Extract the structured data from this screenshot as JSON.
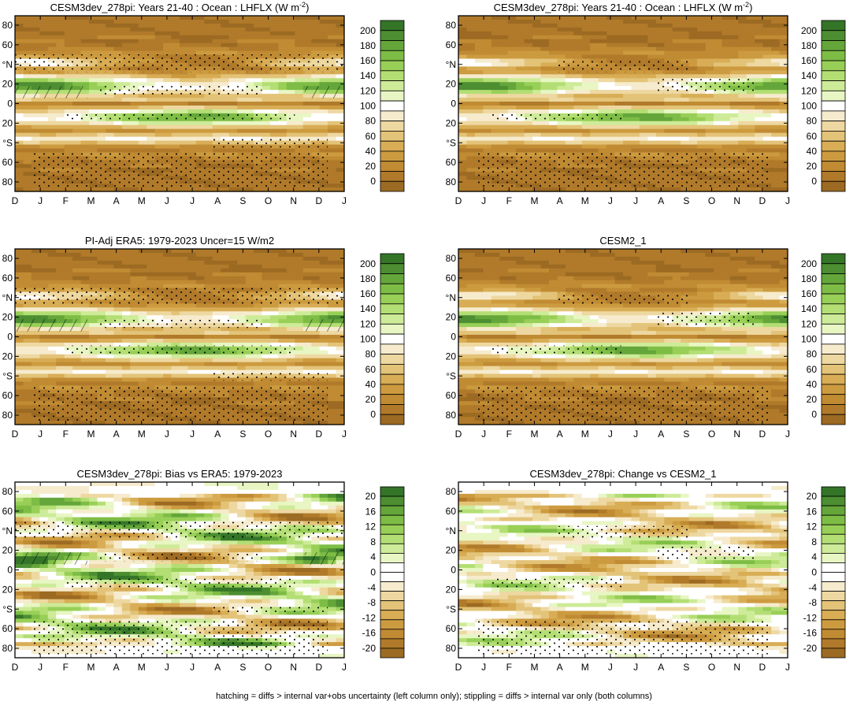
{
  "footer": "hatching = diffs > internal var+obs uncertainty (left column only); stippling = diffs > internal var only (both columns)",
  "colors": {
    "absolute": [
      "#9c6a22",
      "#b07a2a",
      "#c08b33",
      "#cd9b3f",
      "#d8ad55",
      "#e3c378",
      "#eed8a1",
      "#f6ebcd",
      "#ffffff",
      "#e8f6c4",
      "#cdeb98",
      "#b3de74",
      "#98cf57",
      "#7ebd45",
      "#64a63a",
      "#4c8e31",
      "#347528"
    ],
    "difference": [
      "#9c6a22",
      "#b07a2a",
      "#c08b33",
      "#cd9b3f",
      "#d8ad55",
      "#e3c378",
      "#eed8a1",
      "#f6ebcd",
      "#ffffff",
      "#ffffff",
      "#e8f6c4",
      "#cdeb98",
      "#b3de74",
      "#98cf57",
      "#7ebd45",
      "#64a63a",
      "#4c8e31",
      "#347528"
    ]
  },
  "chart_data": [
    {
      "type": "heatmap",
      "title": "CESM3dev_278pi: Years 21-40 : Ocean : LHFLX (W m",
      "title_sup": "-2",
      "title_end": ")",
      "x_ticks": [
        "D",
        "J",
        "F",
        "M",
        "A",
        "M",
        "J",
        "J",
        "A",
        "S",
        "O",
        "N",
        "D",
        "J"
      ],
      "y_ticks": [
        "80",
        "60",
        "°N",
        "20",
        "0",
        "20",
        "°S",
        "60",
        "80"
      ],
      "y_range": [
        -90,
        90
      ],
      "colorbar_ticks": [
        "200",
        "180",
        "160",
        "140",
        "120",
        "100",
        "80",
        "60",
        "40",
        "20",
        "0"
      ],
      "colorbar_range": [
        -10,
        210
      ],
      "scale": "absolute",
      "hatching": true,
      "stippling": true
    },
    {
      "type": "heatmap",
      "title": "CESM3dev_278pi: Years 21-40 : Ocean : LHFLX (W m",
      "title_sup": "-2",
      "title_end": ")",
      "x_ticks": [
        "D",
        "J",
        "F",
        "M",
        "A",
        "M",
        "J",
        "J",
        "A",
        "S",
        "O",
        "N",
        "D",
        "J"
      ],
      "y_ticks": [
        "80",
        "60",
        "°N",
        "20",
        "0",
        "20",
        "°S",
        "60",
        "80"
      ],
      "y_range": [
        -90,
        90
      ],
      "colorbar_ticks": [
        "200",
        "180",
        "160",
        "140",
        "120",
        "100",
        "80",
        "60",
        "40",
        "20",
        "0"
      ],
      "colorbar_range": [
        -10,
        210
      ],
      "scale": "absolute",
      "hatching": false,
      "stippling": true
    },
    {
      "type": "heatmap",
      "title": "PI-Adj ERA5: 1979-2023 Uncer=15 W/m2",
      "x_ticks": [
        "D",
        "J",
        "F",
        "M",
        "A",
        "M",
        "J",
        "J",
        "A",
        "S",
        "O",
        "N",
        "D",
        "J"
      ],
      "y_ticks": [
        "80",
        "60",
        "°N",
        "20",
        "0",
        "20",
        "°S",
        "60",
        "80"
      ],
      "y_range": [
        -90,
        90
      ],
      "colorbar_ticks": [
        "200",
        "180",
        "160",
        "140",
        "120",
        "100",
        "80",
        "60",
        "40",
        "20",
        "0"
      ],
      "colorbar_range": [
        -10,
        210
      ],
      "scale": "absolute",
      "hatching": true,
      "stippling": true
    },
    {
      "type": "heatmap",
      "title": "CESM2_1",
      "x_ticks": [
        "D",
        "J",
        "F",
        "M",
        "A",
        "M",
        "J",
        "J",
        "A",
        "S",
        "O",
        "N",
        "D",
        "J"
      ],
      "y_ticks": [
        "80",
        "60",
        "°N",
        "20",
        "0",
        "20",
        "°S",
        "60",
        "80"
      ],
      "y_range": [
        -90,
        90
      ],
      "colorbar_ticks": [
        "200",
        "180",
        "160",
        "140",
        "120",
        "100",
        "80",
        "60",
        "40",
        "20",
        "0"
      ],
      "colorbar_range": [
        -10,
        210
      ],
      "scale": "absolute",
      "hatching": false,
      "stippling": true
    },
    {
      "type": "heatmap",
      "title": "CESM3dev_278pi: Bias vs ERA5: 1979-2023",
      "x_ticks": [
        "D",
        "J",
        "F",
        "M",
        "A",
        "M",
        "J",
        "J",
        "A",
        "S",
        "O",
        "N",
        "D",
        "J"
      ],
      "y_ticks": [
        "80",
        "60",
        "°N",
        "20",
        "0",
        "20",
        "°S",
        "60",
        "80"
      ],
      "y_range": [
        -90,
        90
      ],
      "colorbar_ticks": [
        "20",
        "16",
        "12",
        "8",
        "4",
        "0",
        "-4",
        "-8",
        "-12",
        "-16",
        "-20"
      ],
      "colorbar_range": [
        -22,
        22
      ],
      "scale": "difference",
      "hatching": true,
      "stippling": true
    },
    {
      "type": "heatmap",
      "title": "CESM3dev_278pi: Change vs CESM2_1",
      "x_ticks": [
        "D",
        "J",
        "F",
        "M",
        "A",
        "M",
        "J",
        "J",
        "A",
        "S",
        "O",
        "N",
        "D",
        "J"
      ],
      "y_ticks": [
        "80",
        "60",
        "°N",
        "20",
        "0",
        "20",
        "°S",
        "60",
        "80"
      ],
      "y_range": [
        -90,
        90
      ],
      "colorbar_ticks": [
        "20",
        "16",
        "12",
        "8",
        "4",
        "0",
        "-4",
        "-8",
        "-12",
        "-16",
        "-20"
      ],
      "colorbar_range": [
        -22,
        22
      ],
      "scale": "difference",
      "hatching": false,
      "stippling": true
    }
  ]
}
